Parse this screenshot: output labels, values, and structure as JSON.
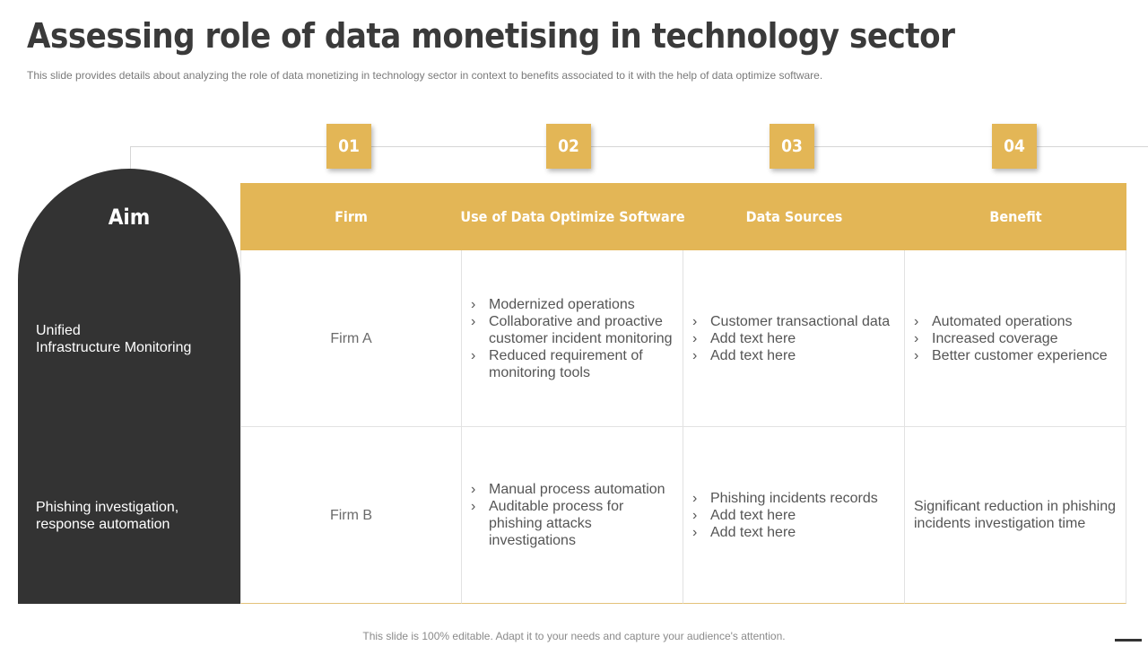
{
  "title": "Assessing role of data monetising in technology sector",
  "subtitle": "This slide  provides  details about analyzing the role of data monetizing in technology sector in context to benefits associated to it with the help of data optimize software.",
  "badges": [
    "01",
    "02",
    "03",
    "04"
  ],
  "aim": {
    "title": "Aim",
    "items": [
      [
        "Unified",
        "Infrastructure  Monitoring"
      ],
      [
        "Phishing investigation,",
        "response  automation"
      ]
    ]
  },
  "columns": [
    "Firm",
    "Use of Data Optimize Software",
    "Data Sources",
    "Benefit"
  ],
  "rows": [
    {
      "firm": "Firm A",
      "software": [
        "Modernized operations",
        "Collaborative and proactive customer incident monitoring",
        "Reduced requirement of monitoring tools"
      ],
      "sources": [
        "Customer transactional data",
        "Add text here",
        "Add text here"
      ],
      "benefit": [
        "Automated operations",
        "Increased coverage",
        "Better customer experience"
      ]
    },
    {
      "firm": "Firm B",
      "software": [
        "Manual process automation",
        "Auditable process for phishing attacks investigations"
      ],
      "sources": [
        "Phishing incidents records",
        "Add text here",
        "Add text here"
      ],
      "benefit_text": "Significant reduction in phishing incidents investigation time"
    }
  ],
  "bullet_glyph": "›",
  "footer": "This slide is 100% editable. Adapt it to your needs and capture your audience's attention.",
  "colors": {
    "accent": "#e3b656",
    "dark_panel": "#333333",
    "title": "#3a3a3a"
  }
}
